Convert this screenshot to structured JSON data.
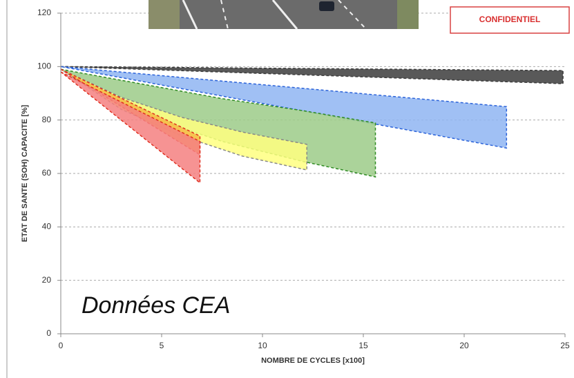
{
  "chart_data": {
    "type": "band",
    "xlabel": "NOMBRE DE CYCLES [x100]",
    "ylabel": "ETAT DE SANTE (SOH) CAPACITE [%]",
    "annotation": "Données CEA",
    "badge": "CONFIDENTIEL",
    "xlim": [
      0,
      25
    ],
    "xticks": [
      0,
      5,
      10,
      15,
      20,
      25
    ],
    "ylim": [
      0,
      120
    ],
    "yticks": [
      0,
      20,
      40,
      60,
      80,
      100,
      120
    ],
    "grid": true,
    "series": [
      {
        "color": "#3c3c3c",
        "edge_color": "#3c3c3c",
        "x": [
          0,
          24.9
        ],
        "upper": [
          100,
          98.5
        ],
        "lower": [
          100,
          93.6
        ]
      },
      {
        "color": "#8fb5f2",
        "edge_color": "#2a62d9",
        "x": [
          0,
          22.1
        ],
        "upper": [
          100,
          85
        ],
        "lower": [
          100,
          69.5
        ]
      },
      {
        "color": "#9ccb88",
        "edge_color": "#2e8b22",
        "x": [
          0,
          4,
          8,
          12,
          15.6
        ],
        "upper": [
          99,
          93.5,
          88,
          83.5,
          78.9
        ],
        "lower": [
          99,
          82,
          72,
          64.5,
          58.7
        ]
      },
      {
        "color": "#ffff80",
        "edge_color": "#888888",
        "x": [
          0,
          3,
          6,
          9,
          12.2
        ],
        "upper": [
          99,
          88.5,
          81,
          75.5,
          70.9
        ],
        "lower": [
          99,
          84,
          74,
          66.5,
          61.3
        ]
      },
      {
        "color": "#f5b845",
        "edge_color": "#e03020",
        "x": [
          0,
          6.9
        ],
        "upper": [
          99,
          74
        ],
        "lower": [
          99,
          67
        ]
      },
      {
        "color": "#f48080",
        "edge_color": "#e03020",
        "x": [
          0,
          6.9
        ],
        "upper": [
          98,
          72
        ],
        "lower": [
          98,
          56.5
        ]
      }
    ]
  }
}
